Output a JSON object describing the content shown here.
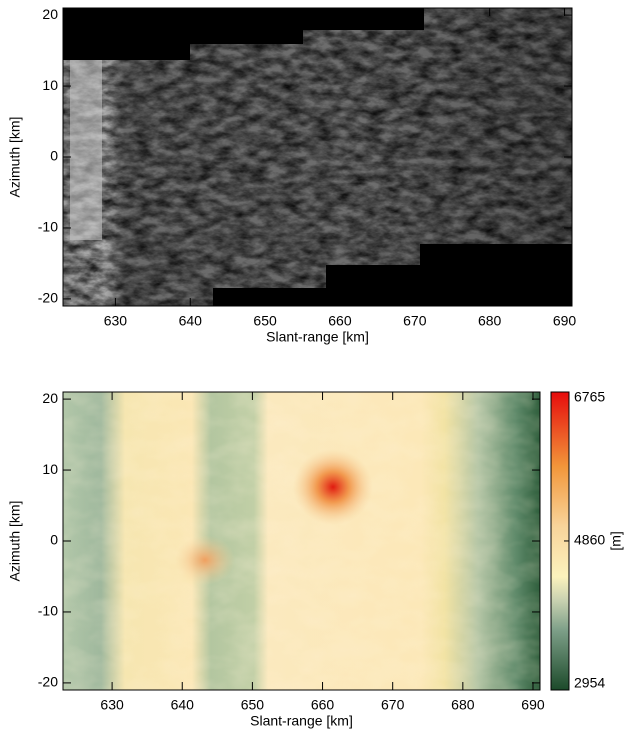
{
  "chart_data": [
    {
      "type": "image",
      "xlabel": "Slant-range [km]",
      "ylabel": "Azimuth [km]",
      "xlim": [
        623,
        691
      ],
      "ylim": [
        -21,
        21
      ],
      "xticks": [
        630,
        640,
        650,
        660,
        670,
        680,
        690
      ],
      "yticks": [
        -20,
        -10,
        0,
        10,
        20
      ]
    },
    {
      "type": "heatmap",
      "xlabel": "Slant-range [km]",
      "ylabel": "Azimuth [km]",
      "xlim": [
        623,
        691
      ],
      "ylim": [
        -21,
        21
      ],
      "xticks": [
        630,
        640,
        650,
        660,
        670,
        680,
        690
      ],
      "yticks": [
        -20,
        -10,
        0,
        10,
        20
      ],
      "colorbar": {
        "label": "[m]",
        "lim": [
          2954,
          6765
        ],
        "ticks": [
          2954,
          4860,
          6765
        ]
      }
    }
  ]
}
